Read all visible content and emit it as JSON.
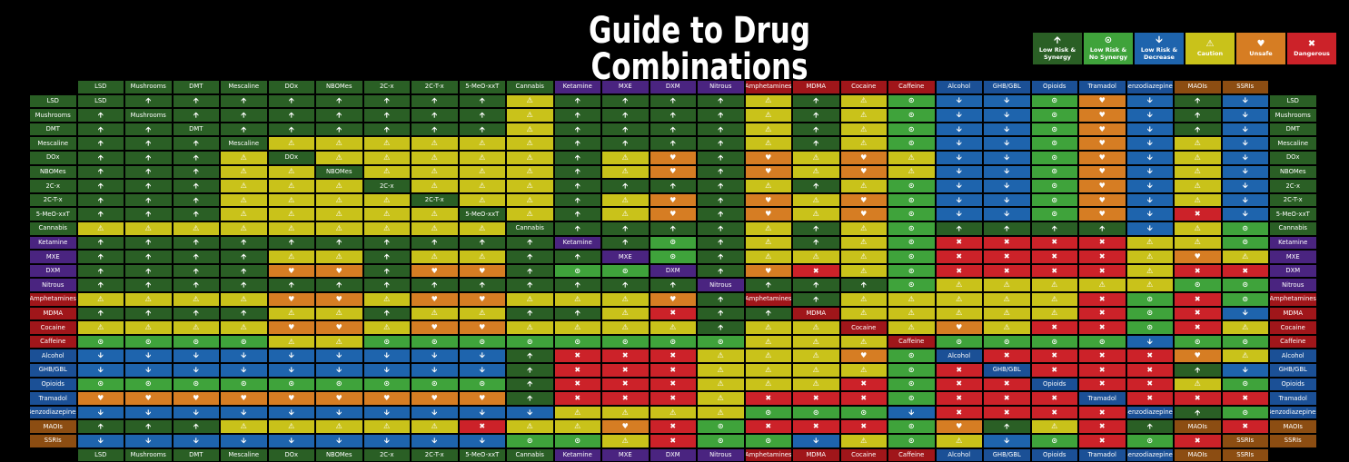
{
  "title": "Guide to Drug Combinations",
  "colors": {
    "U": "#2a5f25",
    "G": "#3fa33b",
    "B": "#1e64ad",
    "Y": "#c9c21a",
    "O": "#d67d23",
    "R": "#cc2229",
    "D": "#1f4a1c"
  },
  "symbols": {
    "U": "🡩",
    "G": "⊙",
    "B": "🡫",
    "Y": "⚠",
    "O": "♥",
    "R": "✖"
  },
  "legend": [
    {
      "key": "U",
      "label": "Low Risk & Synergy"
    },
    {
      "key": "G",
      "label": "Low Risk & No Synergy"
    },
    {
      "key": "B",
      "label": "Low Risk & Decrease"
    },
    {
      "key": "Y",
      "label": "Caution"
    },
    {
      "key": "O",
      "label": "Unsafe"
    },
    {
      "key": "R",
      "label": "Dangerous"
    }
  ],
  "chart_data": {
    "type": "table",
    "title": "Guide to Drug Combinations",
    "substances": [
      "LSD",
      "Mushrooms",
      "DMT",
      "Mescaline",
      "DOx",
      "NBOMes",
      "2C-x",
      "2C-T-x",
      "5-MeO-xxT",
      "Cannabis",
      "Ketamine",
      "MXE",
      "DXM",
      "Nitrous",
      "Amphetamines",
      "MDMA",
      "Cocaine",
      "Caffeine",
      "Alcohol",
      "GHB/GBL",
      "Opioids",
      "Tramadol",
      "Benzodiazepines",
      "MAOIs",
      "SSRIs"
    ],
    "header_colors": [
      "#2a5f25",
      "#2a5f25",
      "#2a5f25",
      "#2a5f25",
      "#2a5f25",
      "#2a5f25",
      "#2a5f25",
      "#2a5f25",
      "#2a5f25",
      "#2a5f25",
      "#4a2480",
      "#4a2480",
      "#4a2480",
      "#4a2480",
      "#a0161a",
      "#a0161a",
      "#a0161a",
      "#a0161a",
      "#1b5096",
      "#1b5096",
      "#1b5096",
      "#1b5096",
      "#1b5096",
      "#8c4d12",
      "#8c4d12"
    ],
    "side_labels": [
      "LSD",
      "Mushrooms",
      "DMT",
      "Mescaline",
      "DOx",
      "NBOMes",
      "2C-x",
      "2C-T-x",
      "5-MeO-xxT",
      "Cannabis",
      "Ketamine",
      "MXE",
      "DXM",
      "Nitrous",
      "Amphetamines",
      "MDMA",
      "Cocaine",
      "Caffeine",
      "Alcohol",
      "GHB/GBL",
      "Opioids",
      "Tramadol",
      "Benzodiazepines",
      "MAOIs",
      "SSRIs"
    ],
    "legend_keys": {
      "U": "Low Risk & Synergy",
      "G": "Low Risk & No Synergy",
      "B": "Low Risk & Decrease",
      "Y": "Caution",
      "O": "Unsafe",
      "R": "Dangerous"
    },
    "matrix": [
      [
        "D",
        "U",
        "U",
        "U",
        "U",
        "U",
        "U",
        "U",
        "U",
        "Y",
        "U",
        "U",
        "U",
        "U",
        "Y",
        "U",
        "Y",
        "G",
        "B",
        "B",
        "G",
        "O",
        "B",
        "U",
        "B"
      ],
      [
        "U",
        "D",
        "U",
        "U",
        "U",
        "U",
        "U",
        "U",
        "U",
        "Y",
        "U",
        "U",
        "U",
        "U",
        "Y",
        "U",
        "Y",
        "G",
        "B",
        "B",
        "G",
        "O",
        "B",
        "U",
        "B"
      ],
      [
        "U",
        "U",
        "D",
        "U",
        "U",
        "U",
        "U",
        "U",
        "U",
        "Y",
        "U",
        "U",
        "U",
        "U",
        "Y",
        "U",
        "Y",
        "G",
        "B",
        "B",
        "G",
        "O",
        "B",
        "U",
        "B"
      ],
      [
        "U",
        "U",
        "U",
        "D",
        "Y",
        "Y",
        "Y",
        "Y",
        "Y",
        "Y",
        "U",
        "U",
        "U",
        "U",
        "Y",
        "U",
        "Y",
        "G",
        "B",
        "B",
        "G",
        "O",
        "B",
        "Y",
        "B"
      ],
      [
        "U",
        "U",
        "U",
        "Y",
        "D",
        "Y",
        "Y",
        "Y",
        "Y",
        "Y",
        "U",
        "Y",
        "O",
        "U",
        "O",
        "Y",
        "O",
        "Y",
        "B",
        "B",
        "G",
        "O",
        "B",
        "Y",
        "B"
      ],
      [
        "U",
        "U",
        "U",
        "Y",
        "Y",
        "D",
        "Y",
        "Y",
        "Y",
        "Y",
        "U",
        "Y",
        "O",
        "U",
        "O",
        "Y",
        "O",
        "Y",
        "B",
        "B",
        "G",
        "O",
        "B",
        "Y",
        "B"
      ],
      [
        "U",
        "U",
        "U",
        "Y",
        "Y",
        "Y",
        "D",
        "Y",
        "Y",
        "Y",
        "U",
        "U",
        "U",
        "U",
        "Y",
        "U",
        "Y",
        "G",
        "B",
        "B",
        "G",
        "O",
        "B",
        "Y",
        "B"
      ],
      [
        "U",
        "U",
        "U",
        "Y",
        "Y",
        "Y",
        "Y",
        "D",
        "Y",
        "Y",
        "U",
        "Y",
        "O",
        "U",
        "O",
        "Y",
        "O",
        "G",
        "B",
        "B",
        "G",
        "O",
        "B",
        "Y",
        "B"
      ],
      [
        "U",
        "U",
        "U",
        "Y",
        "Y",
        "Y",
        "Y",
        "Y",
        "D",
        "Y",
        "U",
        "Y",
        "O",
        "U",
        "O",
        "Y",
        "O",
        "G",
        "B",
        "B",
        "G",
        "O",
        "B",
        "R",
        "B"
      ],
      [
        "Y",
        "Y",
        "Y",
        "Y",
        "Y",
        "Y",
        "Y",
        "Y",
        "Y",
        "D",
        "U",
        "U",
        "U",
        "U",
        "Y",
        "U",
        "Y",
        "G",
        "U",
        "U",
        "U",
        "U",
        "B",
        "Y",
        "G"
      ],
      [
        "U",
        "U",
        "U",
        "U",
        "U",
        "U",
        "U",
        "U",
        "U",
        "U",
        "D",
        "U",
        "G",
        "U",
        "Y",
        "U",
        "Y",
        "G",
        "R",
        "R",
        "R",
        "R",
        "Y",
        "Y",
        "G"
      ],
      [
        "U",
        "U",
        "U",
        "U",
        "Y",
        "Y",
        "U",
        "Y",
        "Y",
        "U",
        "U",
        "D",
        "G",
        "U",
        "Y",
        "Y",
        "Y",
        "G",
        "R",
        "R",
        "R",
        "R",
        "Y",
        "O",
        "Y"
      ],
      [
        "U",
        "U",
        "U",
        "U",
        "O",
        "O",
        "U",
        "O",
        "O",
        "U",
        "G",
        "G",
        "D",
        "U",
        "O",
        "R",
        "Y",
        "G",
        "R",
        "R",
        "R",
        "R",
        "Y",
        "R",
        "R"
      ],
      [
        "U",
        "U",
        "U",
        "U",
        "U",
        "U",
        "U",
        "U",
        "U",
        "U",
        "U",
        "U",
        "U",
        "D",
        "U",
        "U",
        "U",
        "G",
        "Y",
        "Y",
        "Y",
        "Y",
        "Y",
        "G",
        "G"
      ],
      [
        "Y",
        "Y",
        "Y",
        "Y",
        "O",
        "O",
        "Y",
        "O",
        "O",
        "Y",
        "Y",
        "Y",
        "O",
        "U",
        "D",
        "U",
        "Y",
        "Y",
        "Y",
        "Y",
        "Y",
        "R",
        "G",
        "R",
        "G"
      ],
      [
        "U",
        "U",
        "U",
        "U",
        "Y",
        "Y",
        "U",
        "Y",
        "Y",
        "U",
        "U",
        "Y",
        "R",
        "U",
        "U",
        "D",
        "Y",
        "Y",
        "Y",
        "Y",
        "Y",
        "R",
        "G",
        "R",
        "B"
      ],
      [
        "Y",
        "Y",
        "Y",
        "Y",
        "O",
        "O",
        "Y",
        "O",
        "O",
        "Y",
        "Y",
        "Y",
        "Y",
        "U",
        "Y",
        "Y",
        "D",
        "Y",
        "O",
        "Y",
        "R",
        "R",
        "G",
        "R",
        "Y"
      ],
      [
        "G",
        "G",
        "G",
        "G",
        "Y",
        "Y",
        "G",
        "G",
        "G",
        "G",
        "G",
        "G",
        "G",
        "G",
        "Y",
        "Y",
        "Y",
        "D",
        "G",
        "G",
        "G",
        "G",
        "B",
        "G",
        "G"
      ],
      [
        "B",
        "B",
        "B",
        "B",
        "B",
        "B",
        "B",
        "B",
        "B",
        "U",
        "R",
        "R",
        "R",
        "Y",
        "Y",
        "Y",
        "O",
        "G",
        "D",
        "R",
        "R",
        "R",
        "R",
        "O",
        "Y"
      ],
      [
        "B",
        "B",
        "B",
        "B",
        "B",
        "B",
        "B",
        "B",
        "B",
        "U",
        "R",
        "R",
        "R",
        "Y",
        "Y",
        "Y",
        "Y",
        "G",
        "R",
        "D",
        "R",
        "R",
        "R",
        "U",
        "B"
      ],
      [
        "G",
        "G",
        "G",
        "G",
        "G",
        "G",
        "G",
        "G",
        "G",
        "U",
        "R",
        "R",
        "R",
        "Y",
        "Y",
        "Y",
        "R",
        "G",
        "R",
        "R",
        "D",
        "R",
        "R",
        "Y",
        "G"
      ],
      [
        "O",
        "O",
        "O",
        "O",
        "O",
        "O",
        "O",
        "O",
        "O",
        "U",
        "R",
        "R",
        "R",
        "Y",
        "R",
        "R",
        "R",
        "G",
        "R",
        "R",
        "R",
        "D",
        "R",
        "R",
        "R"
      ],
      [
        "B",
        "B",
        "B",
        "B",
        "B",
        "B",
        "B",
        "B",
        "B",
        "B",
        "Y",
        "Y",
        "Y",
        "Y",
        "G",
        "G",
        "G",
        "B",
        "R",
        "R",
        "R",
        "R",
        "D",
        "U",
        "G"
      ],
      [
        "U",
        "U",
        "U",
        "Y",
        "Y",
        "Y",
        "Y",
        "Y",
        "R",
        "Y",
        "Y",
        "O",
        "R",
        "G",
        "R",
        "R",
        "R",
        "G",
        "O",
        "U",
        "Y",
        "R",
        "U",
        "D",
        "R"
      ],
      [
        "B",
        "B",
        "B",
        "B",
        "B",
        "B",
        "B",
        "B",
        "B",
        "G",
        "G",
        "Y",
        "R",
        "G",
        "G",
        "B",
        "Y",
        "G",
        "Y",
        "B",
        "G",
        "R",
        "G",
        "R",
        "D"
      ]
    ]
  }
}
